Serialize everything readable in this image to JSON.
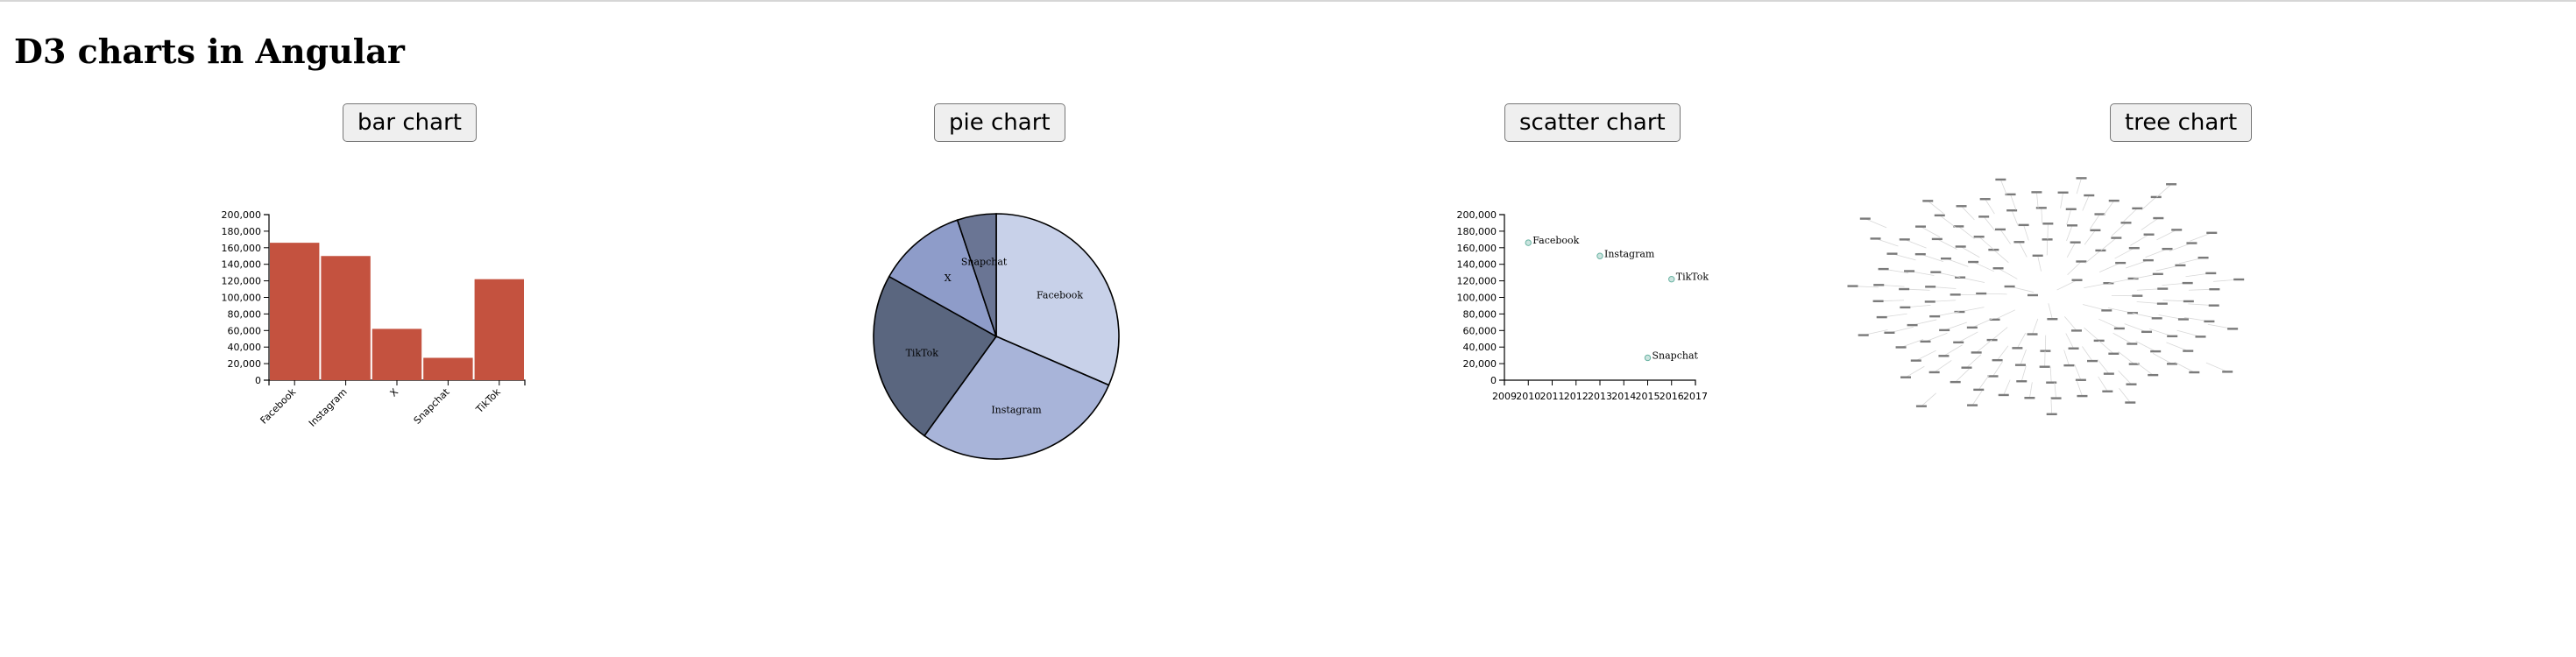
{
  "page": {
    "title": "D3 charts in Angular"
  },
  "buttons": {
    "bar": "bar chart",
    "pie": "pie chart",
    "scatter": "scatter chart",
    "tree": "tree chart"
  },
  "colors": {
    "bar_fill": "#c4523f",
    "pie_slices": [
      "#c8d1e9",
      "#a8b4d9",
      "#5a667f",
      "#8e9cc9",
      "#6a7594"
    ],
    "scatter_point": "#69b3a2",
    "tree_node": "#7a7a7a",
    "tree_link": "#d8d8d8"
  },
  "chart_data": [
    {
      "type": "bar",
      "categories": [
        "Facebook",
        "Instagram",
        "X",
        "Snapchat",
        "TikTok"
      ],
      "values": [
        166000,
        150000,
        62000,
        27000,
        122000
      ],
      "ylim": [
        0,
        200000
      ],
      "yticks": [
        "0",
        "20,000",
        "40,000",
        "60,000",
        "80,000",
        "100,000",
        "120,000",
        "140,000",
        "160,000",
        "180,000",
        "200,000"
      ],
      "ytick_values": [
        0,
        20000,
        40000,
        60000,
        80000,
        100000,
        120000,
        140000,
        160000,
        180000,
        200000
      ],
      "grid": false
    },
    {
      "type": "pie",
      "slices": [
        {
          "label": "Facebook",
          "value": 166000
        },
        {
          "label": "Instagram",
          "value": 150000
        },
        {
          "label": "TikTok",
          "value": 122000
        },
        {
          "label": "X",
          "value": 62000
        },
        {
          "label": "Snapchat",
          "value": 27000
        }
      ]
    },
    {
      "type": "scatter",
      "points": [
        {
          "label": "Facebook",
          "x": 2010,
          "y": 166000
        },
        {
          "label": "Instagram",
          "x": 2013,
          "y": 150000
        },
        {
          "label": "TikTok",
          "x": 2016,
          "y": 122000
        },
        {
          "label": "Snapchat",
          "x": 2015,
          "y": 27000
        }
      ],
      "xlim": [
        2009,
        2017
      ],
      "ylim": [
        0,
        200000
      ],
      "xticks": [
        "2009",
        "2010",
        "2011",
        "2012",
        "2013",
        "2014",
        "2015",
        "2016",
        "2017"
      ],
      "xtick_values": [
        2009,
        2010,
        2011,
        2012,
        2013,
        2014,
        2015,
        2016,
        2017
      ],
      "yticks": [
        "0",
        "20,000",
        "40,000",
        "60,000",
        "80,000",
        "100,000",
        "120,000",
        "140,000",
        "160,000",
        "180,000",
        "200,000"
      ],
      "ytick_values": [
        0,
        20000,
        40000,
        60000,
        80000,
        100000,
        120000,
        140000,
        160000,
        180000,
        200000
      ],
      "grid": false
    },
    {
      "type": "tree",
      "depth_sizes": [
        1,
        3,
        9,
        20,
        30,
        30,
        40,
        15,
        4
      ]
    }
  ]
}
